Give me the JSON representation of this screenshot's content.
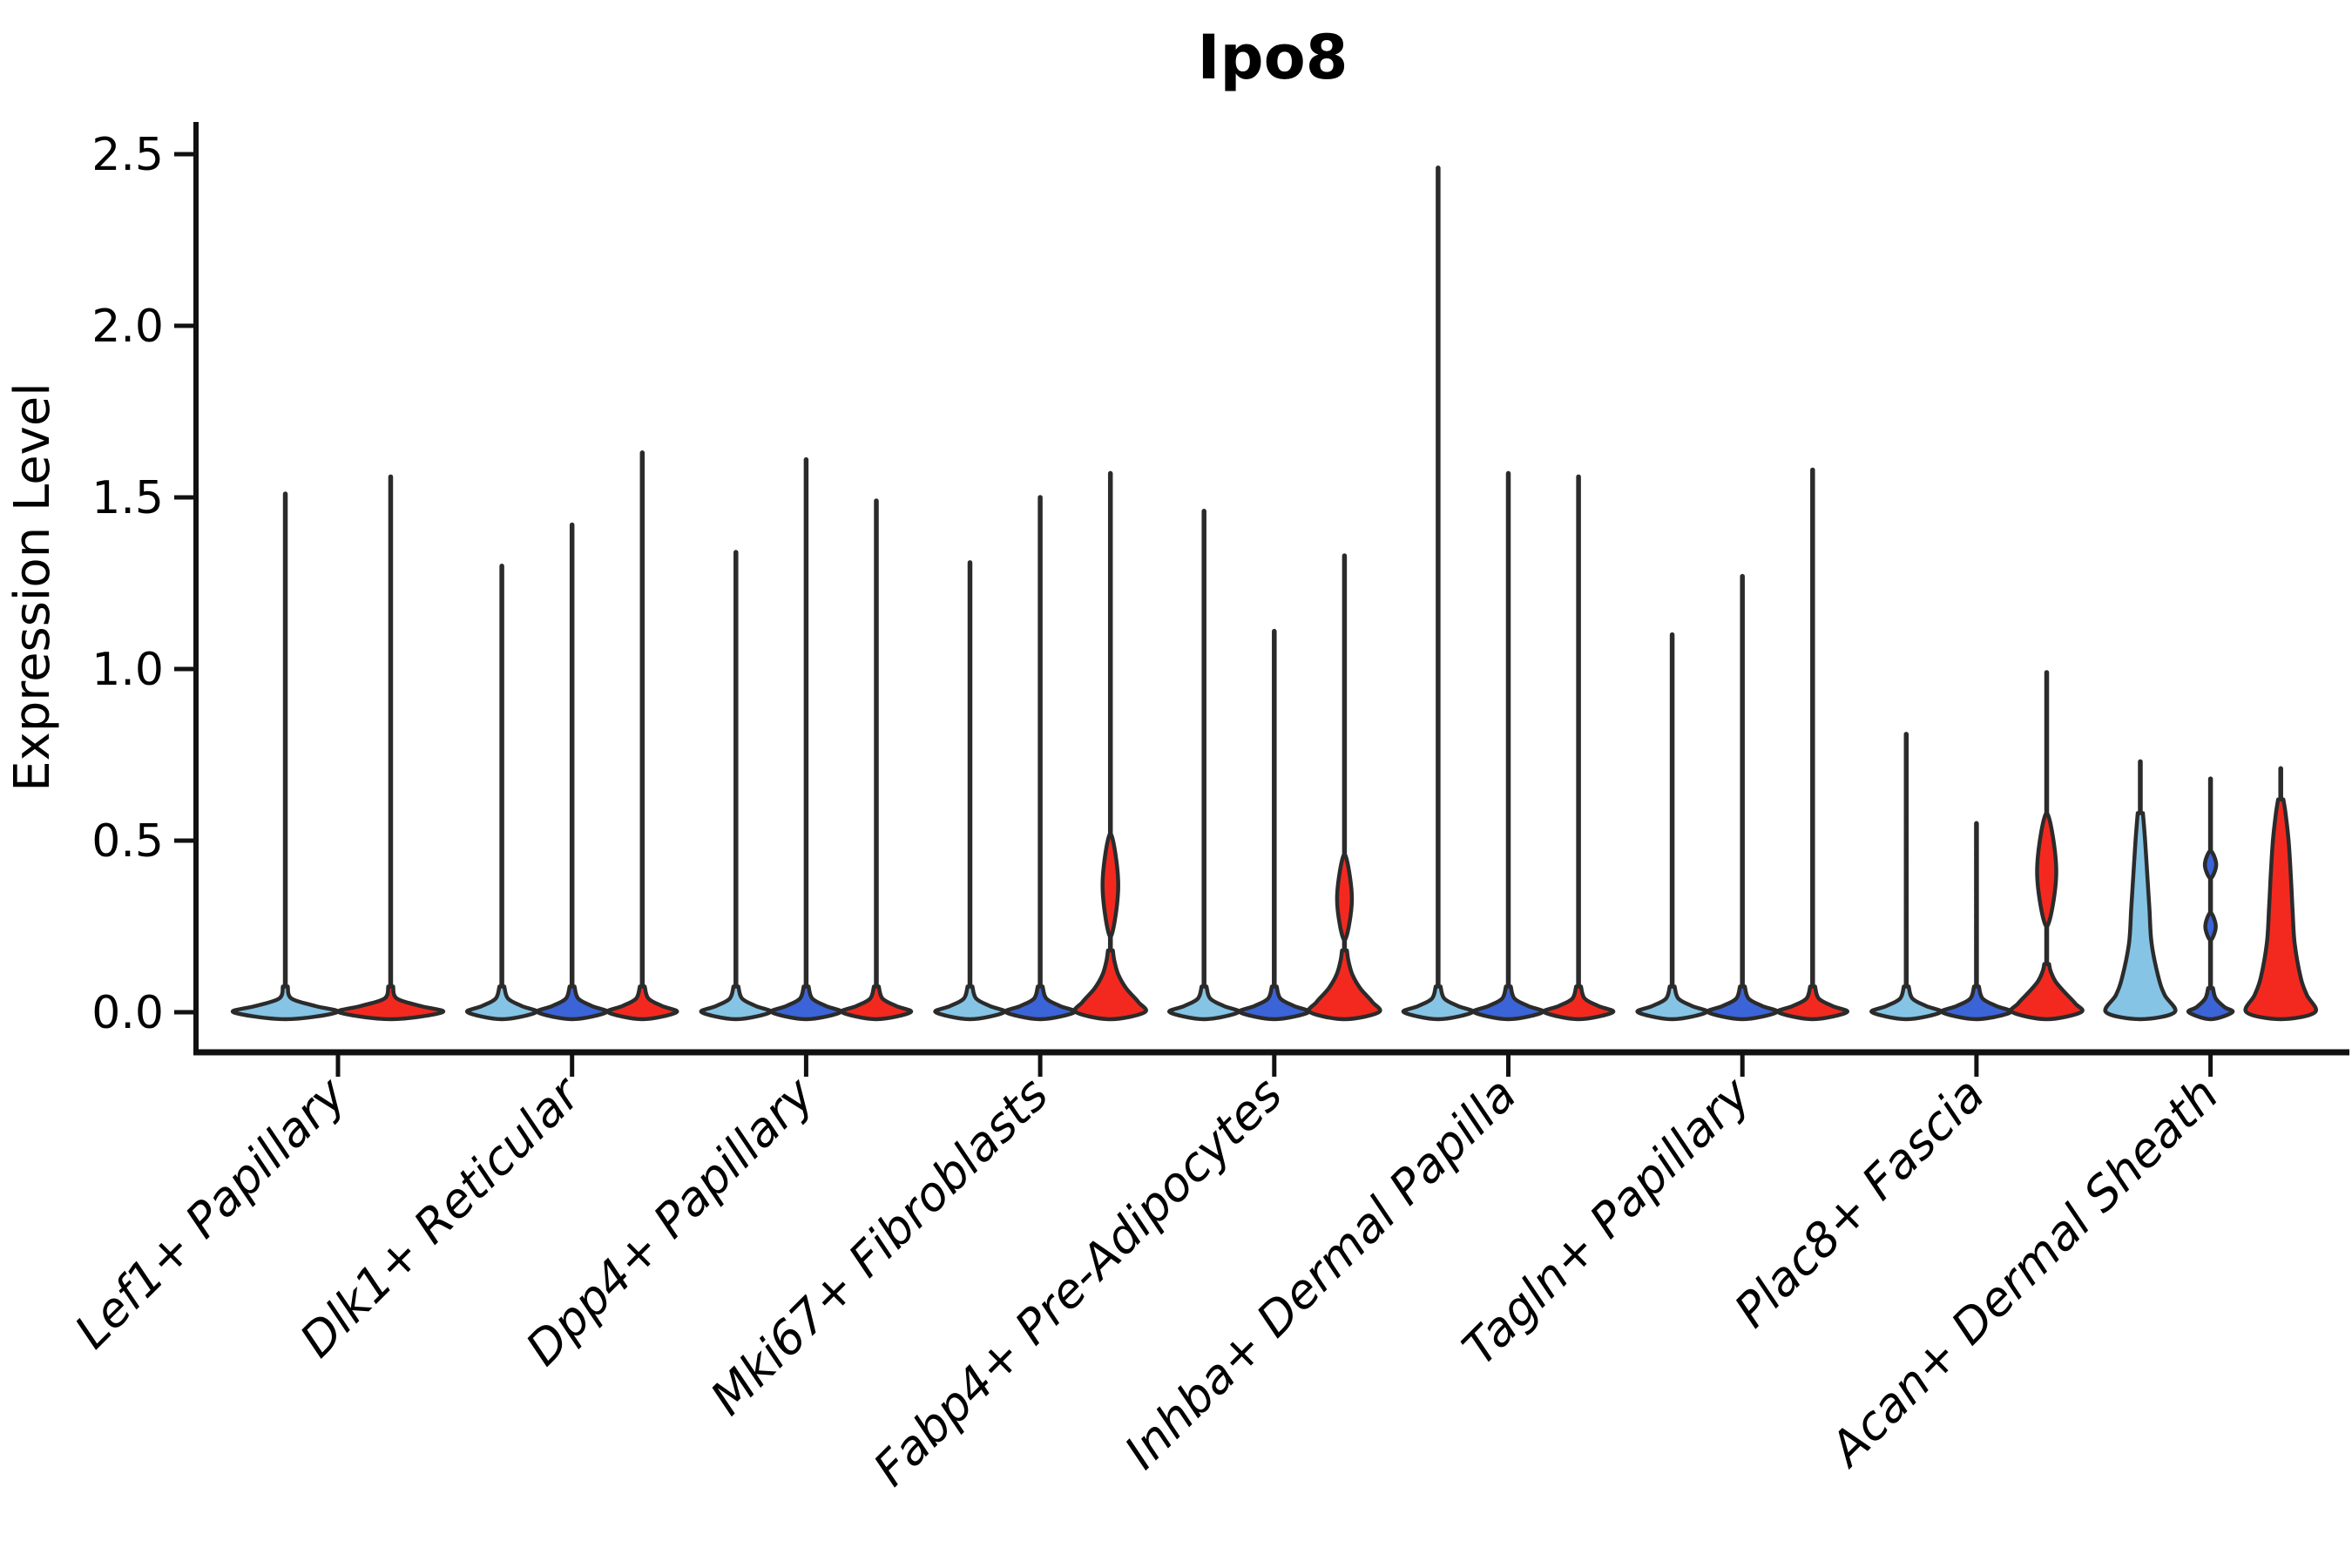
{
  "title": "Ipo8",
  "y_axis": {
    "label": "Expression Level"
  },
  "colors": {
    "red": "#F3291F",
    "light_blue": "#85C4E4",
    "blue": "#3B64D8",
    "outline": "#2B2B2B",
    "spine": "#111111",
    "text": "#000000"
  },
  "chart_data": {
    "type": "violin",
    "title": "Ipo8",
    "ylabel": "Expression Level",
    "ylim": [
      0,
      2.5
    ],
    "yticks": [
      0.0,
      0.5,
      1.0,
      1.5,
      2.0,
      2.5
    ],
    "ytick_labels": [
      "0.0",
      "0.5",
      "1.0",
      "1.5",
      "2.0",
      "2.5"
    ],
    "legend": "none",
    "grid": false,
    "categories": [
      "Lef1+ Papillary",
      "Dlk1+ Reticular",
      "Dpp4+ Papillary",
      "Mki67+ Fibroblasts",
      "Fabp4+ Pre-Adipocytes",
      "Inhba+ Dermal Papilla",
      "Tagln+ Papillary",
      "Plac8+ Fascia",
      "Acan+ Dermal Sheath"
    ],
    "groups": [
      {
        "category": "Lef1+ Papillary",
        "violins": [
          {
            "color_key": "light_blue",
            "max": 1.51,
            "body": null,
            "points": []
          },
          {
            "color_key": "red",
            "max": 1.56,
            "body": null,
            "points": []
          }
        ]
      },
      {
        "category": "Dlk1+ Reticular",
        "violins": [
          {
            "color_key": "light_blue",
            "max": 1.3,
            "body": null,
            "points": []
          },
          {
            "color_key": "blue",
            "max": 1.42,
            "body": null,
            "points": []
          },
          {
            "color_key": "red",
            "max": 1.63,
            "body": null,
            "points": []
          }
        ]
      },
      {
        "category": "Dpp4+ Papillary",
        "violins": [
          {
            "color_key": "light_blue",
            "max": 1.34,
            "body": null,
            "points": []
          },
          {
            "color_key": "blue",
            "max": 1.61,
            "body": null,
            "points": []
          },
          {
            "color_key": "red",
            "max": 1.49,
            "body": null,
            "points": []
          }
        ]
      },
      {
        "category": "Mki67+ Fibroblasts",
        "violins": [
          {
            "color_key": "light_blue",
            "max": 1.31,
            "body": null,
            "points": []
          },
          {
            "color_key": "blue",
            "max": 1.5,
            "body": null,
            "points": []
          },
          {
            "color_key": "red",
            "max": 1.57,
            "body": {
              "base": [
                [
                  0,
                  40
                ],
                [
                  0.03,
                  32
                ],
                [
                  0.07,
                  18
                ],
                [
                  0.11,
                  9
                ],
                [
                  0.15,
                  4.5
                ],
                [
                  0.18,
                  2.8
                ]
              ],
              "bulges": [
                [
                  0.22,
                  0.37,
                  0.52,
                  9
                ]
              ]
            },
            "points": []
          }
        ]
      },
      {
        "category": "Fabp4+ Pre-Adipocytes",
        "violins": [
          {
            "color_key": "light_blue",
            "max": 1.46,
            "body": null,
            "points": []
          },
          {
            "color_key": "blue",
            "max": 1.11,
            "body": null,
            "points": []
          },
          {
            "color_key": "red",
            "max": 1.33,
            "body": {
              "base": [
                [
                  0,
                  40
                ],
                [
                  0.03,
                  32
                ],
                [
                  0.07,
                  18
                ],
                [
                  0.11,
                  9
                ],
                [
                  0.15,
                  4.5
                ],
                [
                  0.18,
                  2.8
                ]
              ],
              "bulges": [
                [
                  0.21,
                  0.33,
                  0.46,
                  8.5
                ]
              ]
            },
            "points": []
          }
        ]
      },
      {
        "category": "Inhba+ Dermal Papilla",
        "violins": [
          {
            "color_key": "light_blue",
            "max": 2.46,
            "body": null,
            "points": []
          },
          {
            "color_key": "blue",
            "max": 1.57,
            "body": null,
            "points": []
          },
          {
            "color_key": "red",
            "max": 1.56,
            "body": null,
            "points": []
          }
        ]
      },
      {
        "category": "Tagln+ Papillary",
        "violins": [
          {
            "color_key": "light_blue",
            "max": 1.1,
            "body": null,
            "points": []
          },
          {
            "color_key": "blue",
            "max": 1.27,
            "body": null,
            "points": []
          },
          {
            "color_key": "red",
            "max": 1.58,
            "body": null,
            "points": []
          }
        ]
      },
      {
        "category": "Plac8+ Fascia",
        "violins": [
          {
            "color_key": "light_blue",
            "max": 0.81,
            "body": null,
            "points": [
              0.27,
              0.33,
              0.4,
              0.46,
              0.51,
              0.56
            ]
          },
          {
            "color_key": "blue",
            "max": 0.55,
            "body": null,
            "points": [
              0.19,
              0.22,
              0.25,
              0.28,
              0.31,
              0.335,
              0.36,
              0.385,
              0.41,
              0.435,
              0.46,
              0.49
            ]
          },
          {
            "color_key": "red",
            "max": 0.99,
            "body": {
              "base": [
                [
                  0,
                  40
                ],
                [
                  0.025,
                  33
                ],
                [
                  0.06,
                  20
                ],
                [
                  0.09,
                  10
                ],
                [
                  0.12,
                  4.5
                ],
                [
                  0.14,
                  2.8
                ]
              ],
              "bulges": [
                [
                  0.25,
                  0.41,
                  0.58,
                  11
                ]
              ]
            },
            "points": []
          }
        ]
      },
      {
        "category": "Acan+ Dermal Sheath",
        "violins": [
          {
            "color_key": "light_blue",
            "max": 0.73,
            "body": {
              "base": [
                [
                  0,
                  40
                ],
                [
                  0.05,
                  28
                ],
                [
                  0.1,
                  21
                ],
                [
                  0.2,
                  13
                ],
                [
                  0.3,
                  10.5
                ],
                [
                  0.4,
                  8
                ],
                [
                  0.5,
                  5.5
                ],
                [
                  0.58,
                  3
                ]
              ],
              "bulges": []
            },
            "points": []
          },
          {
            "color_key": "blue",
            "max": 0.68,
            "body": {
              "base": [
                [
                  0,
                  25
                ],
                [
                  0.015,
                  16
                ],
                [
                  0.04,
                  6
                ],
                [
                  0.07,
                  2.8
                ]
              ],
              "bulges": [
                [
                  0.21,
                  0.25,
                  0.29,
                  6
                ],
                [
                  0.39,
                  0.43,
                  0.47,
                  6.5
                ]
              ]
            },
            "points": []
          },
          {
            "color_key": "red",
            "max": 0.71,
            "body": {
              "base": [
                [
                  0,
                  40
                ],
                [
                  0.05,
                  30
                ],
                [
                  0.1,
                  23
                ],
                [
                  0.2,
                  16
                ],
                [
                  0.3,
                  13.5
                ],
                [
                  0.4,
                  11.5
                ],
                [
                  0.5,
                  9
                ],
                [
                  0.58,
                  5.5
                ],
                [
                  0.62,
                  3
                ]
              ],
              "bulges": []
            },
            "points": []
          }
        ]
      }
    ]
  }
}
